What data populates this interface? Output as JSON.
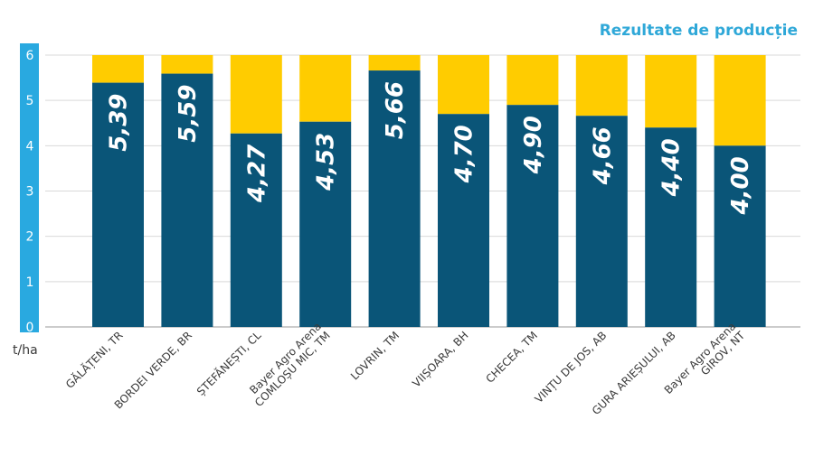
{
  "chart_data": {
    "type": "bar",
    "title": "Rezultate de producție",
    "ylabel": "t/ha",
    "ylim": [
      0,
      6
    ],
    "yticks": [
      "0",
      "1",
      "2",
      "3",
      "4",
      "5",
      "6"
    ],
    "grid": true,
    "categories": [
      [
        "GĂLĂȚENI, TR"
      ],
      [
        "BORDEI VERDE, BR"
      ],
      [
        "ȘTEFĂNEȘTI, CL"
      ],
      [
        "Bayer Agro Arena",
        "COMLOȘU MIC, TM"
      ],
      [
        "LOVRIN, TM"
      ],
      [
        "VIIȘOARA, BH"
      ],
      [
        "CHECEA, TM"
      ],
      [
        "VINȚU DE JOS, AB"
      ],
      [
        "GURA ARIEȘULUI, AB"
      ],
      [
        "Bayer Agro Arena",
        "GIROV, NT"
      ]
    ],
    "values": [
      5.39,
      5.59,
      4.27,
      4.53,
      5.66,
      4.7,
      4.9,
      4.66,
      4.4,
      4.0
    ],
    "value_labels": [
      "5,39",
      "5,59",
      "4,27",
      "4,53",
      "5,66",
      "4,70",
      "4,90",
      "4,66",
      "4,40",
      "4,00"
    ],
    "cap": 6,
    "colors": {
      "value": "#0a5578",
      "remainder": "#ffcc00",
      "axis": "#29a9e0",
      "grid": "#d9d9d9"
    }
  }
}
